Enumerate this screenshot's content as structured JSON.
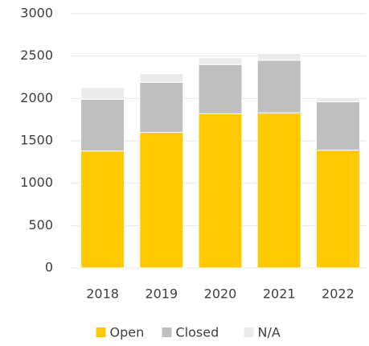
{
  "chart_data": {
    "type": "bar",
    "categories": [
      "2018",
      "2019",
      "2020",
      "2021",
      "2022"
    ],
    "series": [
      {
        "name": "Open",
        "color": "#ffc800",
        "values": [
          1380,
          1600,
          1820,
          1830,
          1390
        ]
      },
      {
        "name": "Closed",
        "color": "#bfbfbf",
        "values": [
          610,
          590,
          580,
          620,
          570
        ]
      },
      {
        "name": "N/A",
        "color": "#ebebeb",
        "values": [
          140,
          100,
          80,
          80,
          50
        ]
      }
    ],
    "stacked": true,
    "ylim": [
      0,
      3000
    ],
    "yticks": [
      0,
      500,
      1000,
      1500,
      2000,
      2500,
      3000
    ],
    "grid": true,
    "legend": "bottom"
  }
}
